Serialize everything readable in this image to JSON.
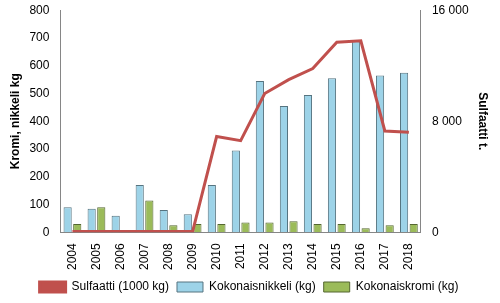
{
  "chart_data": {
    "type": "bar",
    "ylabel": "Kromi, nikkeli kg",
    "y2label": "Sulfaatti t.",
    "categories": [
      "2004",
      "2005",
      "2006",
      "2007",
      "2008",
      "2009",
      "2010",
      "2011",
      "2012",
      "2013",
      "2014",
      "2015",
      "2016",
      "2017",
      "2018"
    ],
    "series": [
      {
        "name": "Kokonaisnikkeli (kg)",
        "type": "bar",
        "color": "#9dd3e8",
        "values": [
          90,
          85,
          60,
          170,
          80,
          65,
          170,
          295,
          545,
          455,
          495,
          555,
          690,
          565,
          575
        ]
      },
      {
        "name": "Kokonaiskromi (kg)",
        "type": "bar",
        "color": "#9bbb59",
        "values": [
          30,
          90,
          5,
          115,
          25,
          30,
          30,
          35,
          35,
          40,
          30,
          30,
          15,
          25,
          30
        ]
      },
      {
        "name": "Sulfaatti (1000 kg)",
        "type": "line",
        "color": "#c0504d",
        "axis": "y2",
        "values": [
          50,
          50,
          50,
          50,
          50,
          50,
          6900,
          6600,
          10000,
          11000,
          11800,
          13700,
          13800,
          7300,
          7200
        ]
      }
    ],
    "ylim": [
      0,
      800
    ],
    "yticks": [
      0,
      100,
      200,
      300,
      400,
      500,
      600,
      700,
      800
    ],
    "y2lim": [
      0,
      16000
    ],
    "y2ticks": [
      0,
      {
        "value": 8000,
        "label": "8 000"
      },
      {
        "value": 16000,
        "label": "16 000"
      }
    ],
    "grid": false,
    "legend": "bottom"
  }
}
